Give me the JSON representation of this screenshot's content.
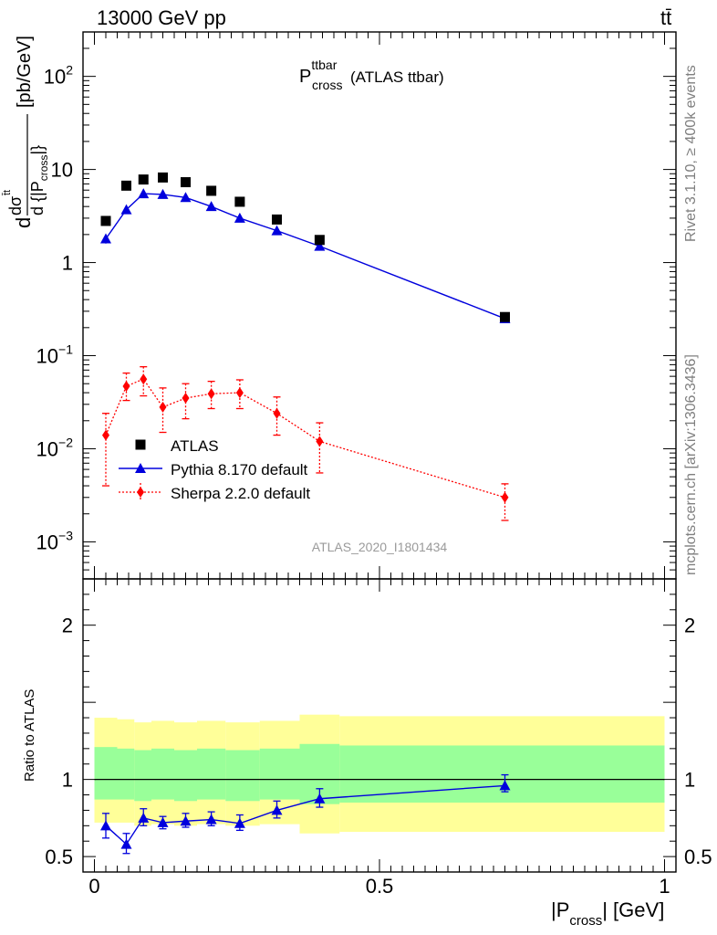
{
  "header": {
    "energy_label": "13000 GeV pp",
    "process_label": "tt̄"
  },
  "side_labels": {
    "rivet": "Rivet 3.1.10, ≥ 400k events",
    "mcplots": "mcplots.cern.ch [arXiv:1306.3436]"
  },
  "chart_data": [
    {
      "type": "line",
      "panel": "main",
      "title_main": "P",
      "title_sup": "ttbar",
      "title_sub": "cross",
      "title_suffix": "(ATLAS ttbar)",
      "analysis_label": "ATLAS_2020_I1801434",
      "ylabel_parts": {
        "d1": "d",
        "sigma": "dσ",
        "sigma_sup": "t̄t",
        "denom": "d {|P",
        "denom_sub": "cross",
        "denom_close": "|}",
        "units": "[pb/GeV]"
      },
      "yscale": "log",
      "ylim": [
        0.0004,
        300
      ],
      "xlim": [
        -0.02,
        1.02
      ],
      "y_ticks": [
        {
          "value": 100,
          "base": "10",
          "exp": "2"
        },
        {
          "value": 10,
          "base": "10",
          "exp": ""
        },
        {
          "value": 1,
          "base": "1",
          "exp": ""
        },
        {
          "value": 0.1,
          "base": "10",
          "exp": "−1"
        },
        {
          "value": 0.01,
          "base": "10",
          "exp": "−2"
        },
        {
          "value": 0.001,
          "base": "10",
          "exp": "−3"
        }
      ],
      "legend": [
        {
          "label": "ATLAS",
          "marker": "square",
          "color": "#000000"
        },
        {
          "label": "Pythia 8.170 default",
          "marker": "triangle",
          "color": "#0000dd"
        },
        {
          "label": "Sherpa 2.2.0 default",
          "marker": "diamond",
          "color": "#ff0000"
        }
      ],
      "series": [
        {
          "name": "ATLAS",
          "color": "#000000",
          "x": [
            0.02,
            0.056,
            0.086,
            0.12,
            0.16,
            0.205,
            0.255,
            0.32,
            0.395,
            0.72
          ],
          "y": [
            2.8,
            6.7,
            7.8,
            8.2,
            7.3,
            5.9,
            4.5,
            2.9,
            1.75,
            0.26
          ]
        },
        {
          "name": "Pythia 8.170 default",
          "color": "#0000dd",
          "x": [
            0.02,
            0.056,
            0.086,
            0.12,
            0.16,
            0.205,
            0.255,
            0.32,
            0.395,
            0.72
          ],
          "y": [
            1.8,
            3.7,
            5.5,
            5.4,
            5.0,
            4.0,
            3.0,
            2.2,
            1.5,
            0.25
          ],
          "err_lo": [
            1.6,
            3.6,
            5.35,
            5.25,
            4.85,
            3.9,
            2.9,
            2.1,
            1.45,
            0.24
          ],
          "err_hi": [
            2.0,
            3.8,
            5.65,
            5.55,
            5.15,
            4.1,
            3.1,
            2.3,
            1.55,
            0.26
          ]
        },
        {
          "name": "Sherpa 2.2.0 default",
          "color": "#ff0000",
          "x": [
            0.02,
            0.056,
            0.086,
            0.12,
            0.16,
            0.205,
            0.255,
            0.32,
            0.395,
            0.72
          ],
          "y": [
            0.014,
            0.047,
            0.056,
            0.028,
            0.035,
            0.039,
            0.04,
            0.024,
            0.012,
            0.003
          ],
          "err_lo": [
            0.004,
            0.033,
            0.037,
            0.015,
            0.021,
            0.027,
            0.027,
            0.014,
            0.0055,
            0.0017
          ],
          "err_hi": [
            0.024,
            0.065,
            0.076,
            0.045,
            0.05,
            0.053,
            0.055,
            0.036,
            0.019,
            0.0042
          ]
        }
      ]
    },
    {
      "type": "line",
      "panel": "ratio",
      "ylabel": "Ratio to ATLAS",
      "xlabel_main": "|P",
      "xlabel_sub": "cross",
      "xlabel_suffix": "| [GeV]",
      "xlim": [
        -0.02,
        1.02
      ],
      "ylim": [
        0.4,
        2.3
      ],
      "y_ticks": [
        {
          "value": 0.5,
          "label": "0.5"
        },
        {
          "value": 1,
          "label": "1"
        },
        {
          "value": 2,
          "label": "2"
        }
      ],
      "x_ticks": [
        {
          "value": 0,
          "label": "0"
        },
        {
          "value": 0.5,
          "label": "0.5"
        },
        {
          "value": 1,
          "label": "1"
        }
      ],
      "bands": [
        {
          "x0": 0.0,
          "x1": 0.04,
          "yel_lo": 0.72,
          "yel_hi": 1.4,
          "grn_lo": 0.87,
          "grn_hi": 1.21
        },
        {
          "x0": 0.04,
          "x1": 0.07,
          "yel_lo": 0.72,
          "yel_hi": 1.39,
          "grn_lo": 0.87,
          "grn_hi": 1.2
        },
        {
          "x0": 0.07,
          "x1": 0.1,
          "yel_lo": 0.7,
          "yel_hi": 1.37,
          "grn_lo": 0.86,
          "grn_hi": 1.19
        },
        {
          "x0": 0.1,
          "x1": 0.14,
          "yel_lo": 0.71,
          "yel_hi": 1.38,
          "grn_lo": 0.87,
          "grn_hi": 1.2
        },
        {
          "x0": 0.14,
          "x1": 0.18,
          "yel_lo": 0.7,
          "yel_hi": 1.37,
          "grn_lo": 0.86,
          "grn_hi": 1.19
        },
        {
          "x0": 0.18,
          "x1": 0.23,
          "yel_lo": 0.71,
          "yel_hi": 1.38,
          "grn_lo": 0.87,
          "grn_hi": 1.2
        },
        {
          "x0": 0.23,
          "x1": 0.29,
          "yel_lo": 0.7,
          "yel_hi": 1.37,
          "grn_lo": 0.86,
          "grn_hi": 1.19
        },
        {
          "x0": 0.29,
          "x1": 0.36,
          "yel_lo": 0.71,
          "yel_hi": 1.38,
          "grn_lo": 0.87,
          "grn_hi": 1.2
        },
        {
          "x0": 0.36,
          "x1": 0.43,
          "yel_lo": 0.65,
          "yel_hi": 1.42,
          "grn_lo": 0.84,
          "grn_hi": 1.23
        },
        {
          "x0": 0.43,
          "x1": 1.0,
          "yel_lo": 0.66,
          "yel_hi": 1.41,
          "grn_lo": 0.85,
          "grn_hi": 1.22
        }
      ],
      "series": [
        {
          "name": "Pythia 8.170 default",
          "color": "#0000dd",
          "x": [
            0.02,
            0.056,
            0.086,
            0.12,
            0.16,
            0.205,
            0.255,
            0.32,
            0.395,
            0.72
          ],
          "y": [
            0.7,
            0.58,
            0.75,
            0.72,
            0.73,
            0.74,
            0.715,
            0.8,
            0.875,
            0.96
          ],
          "err_lo": [
            0.62,
            0.52,
            0.7,
            0.68,
            0.69,
            0.7,
            0.67,
            0.75,
            0.82,
            0.92
          ],
          "err_hi": [
            0.78,
            0.65,
            0.81,
            0.76,
            0.78,
            0.79,
            0.77,
            0.86,
            0.94,
            1.03
          ]
        }
      ]
    }
  ]
}
